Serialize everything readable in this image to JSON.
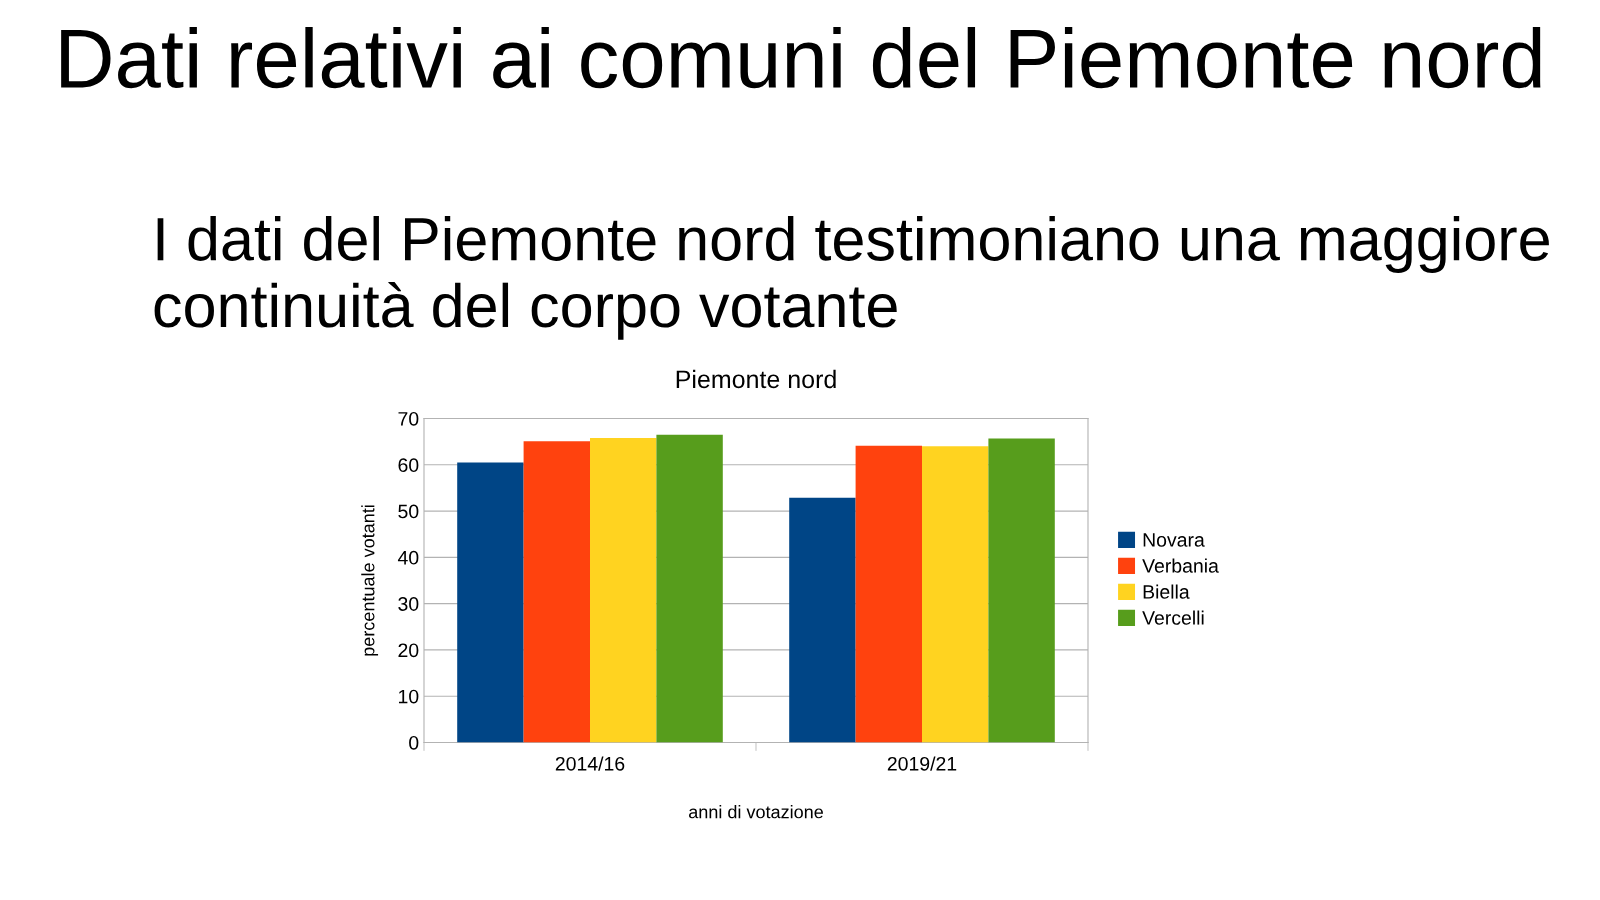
{
  "chart_data": {
    "type": "bar",
    "title": "Piemonte nord",
    "annotations": [
      "Dati relativi ai comuni del Piemonte nord",
      "I dati del Piemonte nord testimoniano una maggiore continuità del corpo votante"
    ],
    "xlabel": "anni di votazione",
    "ylabel": "percentuale votanti",
    "categories": [
      "2014/16",
      "2019/21"
    ],
    "series": [
      {
        "name": "Novara",
        "color": "#004586",
        "values": [
          60.5,
          52.9
        ]
      },
      {
        "name": "Verbania",
        "color": "#ff420e",
        "values": [
          65.1,
          64.1
        ]
      },
      {
        "name": "Biella",
        "color": "#ffd320",
        "values": [
          65.8,
          64.0
        ]
      },
      {
        "name": "Vercelli",
        "color": "#579d1c",
        "values": [
          66.5,
          65.7
        ]
      }
    ],
    "ylim": [
      0,
      70
    ],
    "yticks": [
      0,
      10,
      20,
      30,
      40,
      50,
      60,
      70
    ],
    "grid": "y",
    "legend": "right"
  }
}
